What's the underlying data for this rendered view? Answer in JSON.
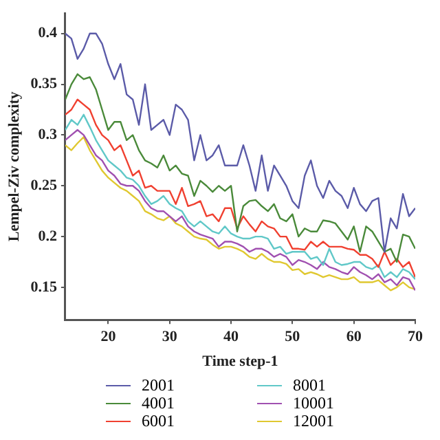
{
  "chart_data": {
    "type": "line",
    "xlabel": "Time step-1",
    "ylabel": "Lempel-Ziv complexity",
    "x": [
      13,
      14,
      15,
      16,
      17,
      18,
      19,
      20,
      21,
      22,
      23,
      24,
      25,
      26,
      27,
      28,
      29,
      30,
      31,
      32,
      33,
      34,
      35,
      36,
      37,
      38,
      39,
      40,
      41,
      42,
      43,
      44,
      45,
      46,
      47,
      48,
      49,
      50,
      51,
      52,
      53,
      54,
      55,
      56,
      57,
      58,
      59,
      60,
      61,
      62,
      63,
      64,
      65,
      66,
      67,
      68,
      69,
      70
    ],
    "xlim": [
      13,
      70
    ],
    "xticks": [
      20,
      30,
      40,
      50,
      60,
      70
    ],
    "ylim": [
      0.118,
      0.42
    ],
    "yticks": [
      0.15,
      0.2,
      0.25,
      0.3,
      0.35,
      0.4
    ],
    "grid": false,
    "legend": "bottom",
    "marker": "none",
    "line_style": "solid",
    "series": [
      {
        "name": "2001",
        "color": "#5b5ba8",
        "values": [
          0.4,
          0.395,
          0.375,
          0.385,
          0.4,
          0.4,
          0.39,
          0.37,
          0.355,
          0.37,
          0.34,
          0.335,
          0.31,
          0.35,
          0.305,
          0.31,
          0.315,
          0.3,
          0.33,
          0.325,
          0.315,
          0.275,
          0.3,
          0.275,
          0.28,
          0.29,
          0.27,
          0.27,
          0.27,
          0.29,
          0.27,
          0.245,
          0.28,
          0.245,
          0.27,
          0.26,
          0.25,
          0.235,
          0.228,
          0.26,
          0.275,
          0.25,
          0.238,
          0.255,
          0.245,
          0.24,
          0.228,
          0.248,
          0.232,
          0.225,
          0.235,
          0.238,
          0.185,
          0.218,
          0.208,
          0.242,
          0.22,
          0.228
        ]
      },
      {
        "name": "4001",
        "color": "#4a8a3a",
        "values": [
          0.335,
          0.35,
          0.36,
          0.355,
          0.357,
          0.345,
          0.325,
          0.305,
          0.313,
          0.313,
          0.295,
          0.3,
          0.285,
          0.275,
          0.272,
          0.268,
          0.28,
          0.265,
          0.27,
          0.262,
          0.26,
          0.24,
          0.255,
          0.25,
          0.244,
          0.25,
          0.245,
          0.25,
          0.205,
          0.23,
          0.235,
          0.236,
          0.23,
          0.225,
          0.232,
          0.218,
          0.215,
          0.222,
          0.2,
          0.208,
          0.205,
          0.205,
          0.216,
          0.215,
          0.213,
          0.205,
          0.197,
          0.21,
          0.185,
          0.21,
          0.205,
          0.195,
          0.185,
          0.188,
          0.175,
          0.202,
          0.2,
          0.188
        ]
      },
      {
        "name": "6001",
        "color": "#f04030",
        "values": [
          0.32,
          0.325,
          0.335,
          0.33,
          0.325,
          0.31,
          0.3,
          0.295,
          0.285,
          0.29,
          0.275,
          0.26,
          0.265,
          0.248,
          0.25,
          0.245,
          0.245,
          0.245,
          0.232,
          0.248,
          0.23,
          0.232,
          0.235,
          0.22,
          0.222,
          0.215,
          0.228,
          0.228,
          0.208,
          0.22,
          0.212,
          0.205,
          0.215,
          0.21,
          0.208,
          0.2,
          0.2,
          0.188,
          0.188,
          0.187,
          0.195,
          0.19,
          0.195,
          0.19,
          0.19,
          0.19,
          0.188,
          0.187,
          0.182,
          0.182,
          0.178,
          0.17,
          0.185,
          0.172,
          0.178,
          0.17,
          0.175,
          0.16
        ]
      },
      {
        "name": "8001",
        "color": "#60c8c8",
        "values": [
          0.305,
          0.315,
          0.31,
          0.32,
          0.308,
          0.295,
          0.285,
          0.275,
          0.27,
          0.265,
          0.258,
          0.256,
          0.25,
          0.24,
          0.232,
          0.235,
          0.24,
          0.232,
          0.228,
          0.225,
          0.215,
          0.21,
          0.215,
          0.21,
          0.205,
          0.203,
          0.21,
          0.203,
          0.2,
          0.198,
          0.198,
          0.2,
          0.2,
          0.198,
          0.188,
          0.19,
          0.183,
          0.185,
          0.185,
          0.185,
          0.178,
          0.18,
          0.172,
          0.188,
          0.175,
          0.172,
          0.173,
          0.175,
          0.175,
          0.17,
          0.168,
          0.172,
          0.16,
          0.165,
          0.16,
          0.168,
          0.165,
          0.158
        ]
      },
      {
        "name": "10001",
        "color": "#a050b0",
        "values": [
          0.295,
          0.3,
          0.305,
          0.3,
          0.29,
          0.28,
          0.275,
          0.265,
          0.26,
          0.252,
          0.25,
          0.25,
          0.245,
          0.235,
          0.228,
          0.225,
          0.225,
          0.22,
          0.215,
          0.22,
          0.21,
          0.205,
          0.202,
          0.2,
          0.198,
          0.19,
          0.195,
          0.195,
          0.193,
          0.19,
          0.185,
          0.188,
          0.188,
          0.185,
          0.18,
          0.183,
          0.18,
          0.172,
          0.177,
          0.175,
          0.172,
          0.168,
          0.175,
          0.17,
          0.168,
          0.165,
          0.163,
          0.17,
          0.165,
          0.162,
          0.158,
          0.163,
          0.155,
          0.158,
          0.152,
          0.16,
          0.158,
          0.147
        ]
      },
      {
        "name": "12001",
        "color": "#e0c830",
        "values": [
          0.29,
          0.285,
          0.292,
          0.298,
          0.285,
          0.275,
          0.265,
          0.258,
          0.253,
          0.248,
          0.245,
          0.24,
          0.235,
          0.225,
          0.222,
          0.218,
          0.216,
          0.22,
          0.213,
          0.21,
          0.205,
          0.2,
          0.198,
          0.197,
          0.192,
          0.188,
          0.19,
          0.19,
          0.188,
          0.185,
          0.18,
          0.178,
          0.183,
          0.178,
          0.175,
          0.175,
          0.173,
          0.167,
          0.168,
          0.163,
          0.165,
          0.163,
          0.16,
          0.162,
          0.16,
          0.158,
          0.158,
          0.16,
          0.155,
          0.155,
          0.155,
          0.157,
          0.152,
          0.147,
          0.15,
          0.155,
          0.15,
          0.148
        ]
      }
    ]
  }
}
